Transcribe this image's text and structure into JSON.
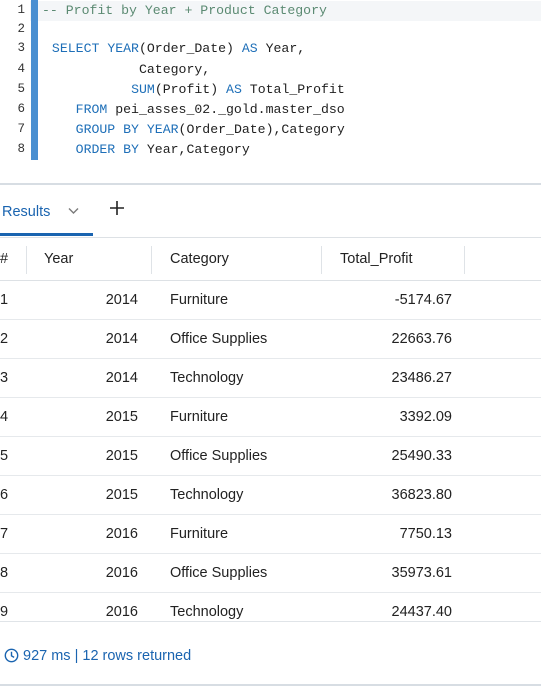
{
  "editor": {
    "line_numbers": [
      "1",
      "2",
      "3",
      "4",
      "5",
      "6",
      "7",
      "8"
    ],
    "lines": [
      [
        {
          "t": "-- Profit by Year + Product Category",
          "c": "cm"
        }
      ],
      [],
      [
        {
          "t": " SELECT ",
          "c": "kw"
        },
        {
          "t": "YEAR",
          "c": "kw"
        },
        {
          "t": "(Order_Date) ",
          "c": ""
        },
        {
          "t": "AS",
          "c": "kw"
        },
        {
          "t": " Year,",
          "c": ""
        }
      ],
      [
        {
          "t": "            Category,",
          "c": ""
        }
      ],
      [
        {
          "t": "           ",
          "c": ""
        },
        {
          "t": "SUM",
          "c": "kw"
        },
        {
          "t": "(Profit) ",
          "c": ""
        },
        {
          "t": "AS",
          "c": "kw"
        },
        {
          "t": " Total_Profit",
          "c": ""
        }
      ],
      [
        {
          "t": "    ",
          "c": ""
        },
        {
          "t": "FROM",
          "c": "kw"
        },
        {
          "t": " pei_asses_02._gold.master_dso",
          "c": ""
        }
      ],
      [
        {
          "t": "    ",
          "c": ""
        },
        {
          "t": "GROUP BY",
          "c": "kw"
        },
        {
          "t": " ",
          "c": ""
        },
        {
          "t": "YEAR",
          "c": "kw"
        },
        {
          "t": "(Order_Date),Category",
          "c": ""
        }
      ],
      [
        {
          "t": "    ",
          "c": ""
        },
        {
          "t": "ORDER BY",
          "c": "kw"
        },
        {
          "t": " Year,Category",
          "c": ""
        }
      ]
    ]
  },
  "results": {
    "tab_label": "Results",
    "columns": [
      "#",
      "Year",
      "Category",
      "Total_Profit"
    ],
    "rows": [
      [
        "1",
        "2014",
        "Furniture",
        "-5174.67"
      ],
      [
        "2",
        "2014",
        "Office Supplies",
        "22663.76"
      ],
      [
        "3",
        "2014",
        "Technology",
        "23486.27"
      ],
      [
        "4",
        "2015",
        "Furniture",
        "3392.09"
      ],
      [
        "5",
        "2015",
        "Office Supplies",
        "25490.33"
      ],
      [
        "6",
        "2015",
        "Technology",
        "36823.80"
      ],
      [
        "7",
        "2016",
        "Furniture",
        "7750.13"
      ],
      [
        "8",
        "2016",
        "Office Supplies",
        "35973.61"
      ],
      [
        "9",
        "2016",
        "Technology",
        "24437.40"
      ]
    ],
    "status": "927 ms | 12 rows returned"
  },
  "icons": {
    "tab_dropdown": "chevron-down-icon",
    "add_tab": "plus-icon",
    "status": "clock-icon"
  },
  "colors": {
    "accent": "#1a64b0",
    "keyword": "#1e6fb8",
    "comment": "#5b8a72",
    "gutter_guide": "#4a8fd1"
  }
}
